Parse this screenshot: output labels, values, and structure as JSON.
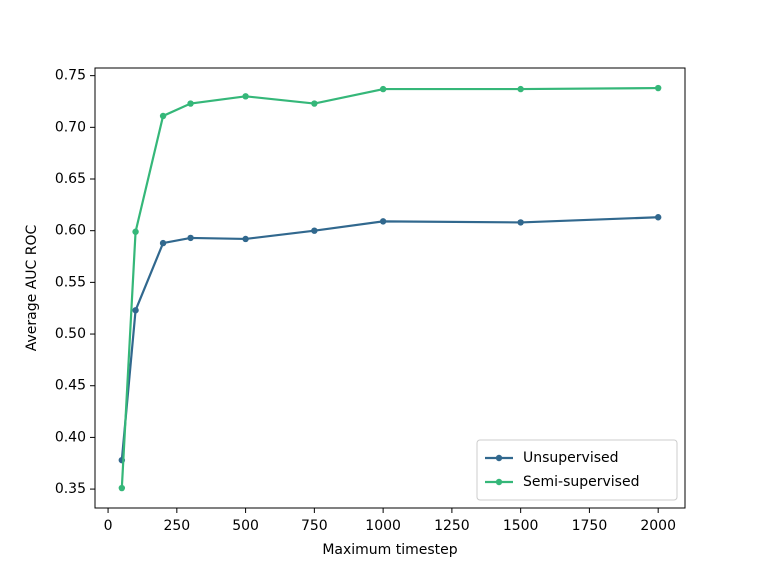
{
  "chart_data": {
    "type": "line",
    "xlabel": "Maximum timestep",
    "ylabel": "Average AUC ROC",
    "x": [
      50,
      100,
      200,
      300,
      500,
      750,
      1000,
      1500,
      2000
    ],
    "series": [
      {
        "name": "Unsupervised",
        "color": "#31688e",
        "values": [
          0.378,
          0.523,
          0.588,
          0.593,
          0.592,
          0.6,
          0.609,
          0.608,
          0.613
        ]
      },
      {
        "name": "Semi-supervised",
        "color": "#35b779",
        "values": [
          0.351,
          0.599,
          0.711,
          0.723,
          0.73,
          0.723,
          0.737,
          0.737,
          0.738
        ]
      }
    ],
    "xlim": [
      -47.5,
      2097.5
    ],
    "xticks": [
      0,
      250,
      500,
      750,
      1000,
      1250,
      1500,
      1750,
      2000
    ],
    "ylim": [
      0.3317,
      0.7574
    ],
    "yticks": [
      0.35,
      {
        "value": 0.4,
        "label": "0.40"
      },
      0.45,
      {
        "value": 0.5,
        "label": "0.50"
      },
      0.55,
      {
        "value": 0.6,
        "label": "0.60"
      },
      0.65,
      {
        "value": 0.7,
        "label": "0.70"
      },
      0.75
    ],
    "legend": "lower right"
  }
}
